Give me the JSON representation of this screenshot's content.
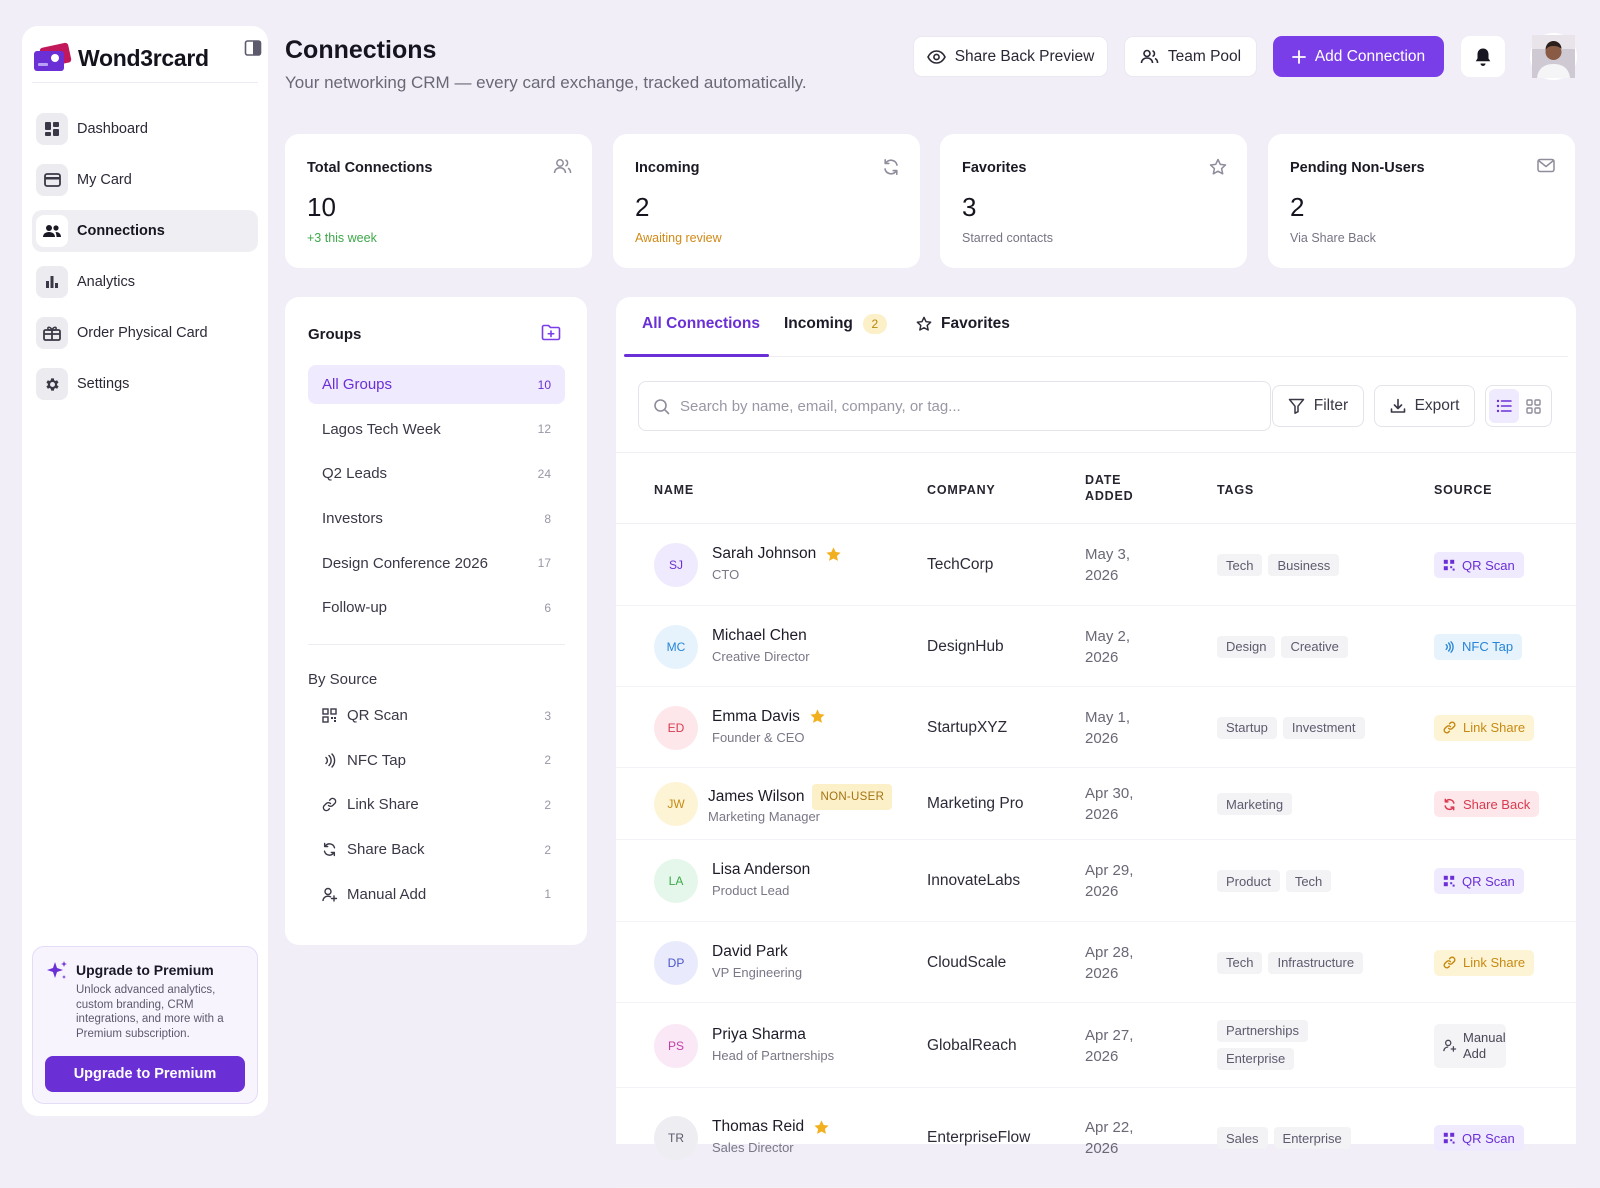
{
  "app": {
    "brand": "Wond3rcard",
    "colors": {
      "accent": "#7a3ee8",
      "primary_button": "#6b2fd6",
      "background": "#f1eef8"
    }
  },
  "sidebar": {
    "items": [
      {
        "label": "Dashboard",
        "icon": "dashboard-icon",
        "active": false
      },
      {
        "label": "My Card",
        "icon": "card-icon",
        "active": false
      },
      {
        "label": "Connections",
        "icon": "people-icon",
        "active": true
      },
      {
        "label": "Analytics",
        "icon": "bar-chart-icon",
        "active": false
      },
      {
        "label": "Order Physical Card",
        "icon": "gift-card-icon",
        "active": false
      },
      {
        "label": "Settings",
        "icon": "gear-icon",
        "active": false
      }
    ],
    "upgrade": {
      "title": "Upgrade to Premium",
      "text": "Unlock advanced analytics, custom branding, CRM integrations, and more with a Premium subscription.",
      "button": "Upgrade to Premium"
    }
  },
  "header": {
    "title": "Connections",
    "subtitle": "Your networking CRM — every card exchange, tracked automatically.",
    "share_back_preview": "Share Back Preview",
    "team_pool": "Team Pool",
    "add_connection": "Add Connection"
  },
  "stats": [
    {
      "label": "Total Connections",
      "value": "10",
      "note": "+3 this week",
      "icon": "people-icon",
      "note_color": "#3ea84a"
    },
    {
      "label": "Incoming",
      "value": "2",
      "note": "Awaiting review",
      "icon": "refresh-icon",
      "note_color": "#d08a16"
    },
    {
      "label": "Favorites",
      "value": "3",
      "note": "Starred contacts",
      "icon": "star-icon",
      "note_color": "#777484"
    },
    {
      "label": "Pending Non-Users",
      "value": "2",
      "note": "Via Share Back",
      "icon": "mail-icon",
      "note_color": "#777484"
    }
  ],
  "groups": {
    "title": "Groups",
    "items": [
      {
        "label": "All Groups",
        "count": "10",
        "active": true
      },
      {
        "label": "Lagos Tech Week",
        "count": "12",
        "active": false
      },
      {
        "label": "Q2 Leads",
        "count": "24",
        "active": false
      },
      {
        "label": "Investors",
        "count": "8",
        "active": false
      },
      {
        "label": "Design Conference 2026",
        "count": "17",
        "active": false
      },
      {
        "label": "Follow-up",
        "count": "6",
        "active": false
      }
    ],
    "by_source_title": "By Source",
    "sources": [
      {
        "label": "QR Scan",
        "count": "3",
        "icon": "qr-icon"
      },
      {
        "label": "NFC Tap",
        "count": "2",
        "icon": "nfc-icon"
      },
      {
        "label": "Link Share",
        "count": "2",
        "icon": "link-icon"
      },
      {
        "label": "Share Back",
        "count": "2",
        "icon": "refresh-icon"
      },
      {
        "label": "Manual Add",
        "count": "1",
        "icon": "user-plus-icon"
      }
    ]
  },
  "tabs": [
    {
      "label": "All Connections",
      "active": true
    },
    {
      "label": "Incoming",
      "badge": "2",
      "active": false
    },
    {
      "label": "Favorites",
      "active": false
    }
  ],
  "toolbar": {
    "search_placeholder": "Search by name, email, company, or tag...",
    "filter": "Filter",
    "export": "Export"
  },
  "table": {
    "columns": {
      "name": "NAME",
      "company": "COMPANY",
      "date": "DATE ADDED",
      "tags": "TAGS",
      "source": "SOURCE"
    },
    "rows": [
      {
        "initials": "SJ",
        "name": "Sarah Johnson",
        "role": "CTO",
        "favorite": true,
        "non_user": "",
        "company": "TechCorp",
        "date": "May 3, 2026",
        "tags": [
          "Tech",
          "Business"
        ],
        "source": "QR Scan",
        "source_type": "qr",
        "avatar_bg": "#efeafd",
        "avatar_fg": "#6b2fd6"
      },
      {
        "initials": "MC",
        "name": "Michael Chen",
        "role": "Creative Director",
        "favorite": false,
        "non_user": "",
        "company": "DesignHub",
        "date": "May 2, 2026",
        "tags": [
          "Design",
          "Creative"
        ],
        "source": "NFC Tap",
        "source_type": "nfc",
        "avatar_bg": "#e6f3fd",
        "avatar_fg": "#2784d6"
      },
      {
        "initials": "ED",
        "name": "Emma Davis",
        "role": "Founder & CEO",
        "favorite": true,
        "non_user": "",
        "company": "StartupXYZ",
        "date": "May 1, 2026",
        "tags": [
          "Startup",
          "Investment"
        ],
        "source": "Link Share",
        "source_type": "link",
        "avatar_bg": "#fde7ea",
        "avatar_fg": "#d83b4f"
      },
      {
        "initials": "JW",
        "name": "James Wilson",
        "role": "Marketing Manager",
        "favorite": false,
        "non_user": "NON-USER",
        "company": "Marketing Pro",
        "date": "Apr 30, 2026",
        "tags": [
          "Marketing"
        ],
        "source": "Share Back",
        "source_type": "share",
        "avatar_bg": "#fdf4d6",
        "avatar_fg": "#c68a12"
      },
      {
        "initials": "LA",
        "name": "Lisa Anderson",
        "role": "Product Lead",
        "favorite": false,
        "non_user": "",
        "company": "InnovateLabs",
        "date": "Apr 29, 2026",
        "tags": [
          "Product",
          "Tech"
        ],
        "source": "QR Scan",
        "source_type": "qr",
        "avatar_bg": "#e4f7ea",
        "avatar_fg": "#3ea84a"
      },
      {
        "initials": "DP",
        "name": "David Park",
        "role": "VP Engineering",
        "favorite": false,
        "non_user": "",
        "company": "CloudScale",
        "date": "Apr 28, 2026",
        "tags": [
          "Tech",
          "Infrastructure"
        ],
        "source": "Link Share",
        "source_type": "link",
        "avatar_bg": "#e9ebfc",
        "avatar_fg": "#4a55c9"
      },
      {
        "initials": "PS",
        "name": "Priya Sharma",
        "role": "Head of Partnerships",
        "favorite": false,
        "non_user": "",
        "company": "GlobalReach",
        "date": "Apr 27, 2026",
        "tags": [
          "Partnerships",
          "Enterprise"
        ],
        "source": "Manual Add",
        "source_type": "manual",
        "avatar_bg": "#fbe8f6",
        "avatar_fg": "#c03ea8"
      },
      {
        "initials": "TR",
        "name": "Thomas Reid",
        "role": "Sales Director",
        "favorite": true,
        "non_user": "",
        "company": "EnterpriseFlow",
        "date": "Apr 22, 2026",
        "tags": [
          "Sales",
          "Enterprise"
        ],
        "source": "QR Scan",
        "source_type": "qr",
        "avatar_bg": "#eeedf1",
        "avatar_fg": "#5e5a6d"
      }
    ]
  }
}
